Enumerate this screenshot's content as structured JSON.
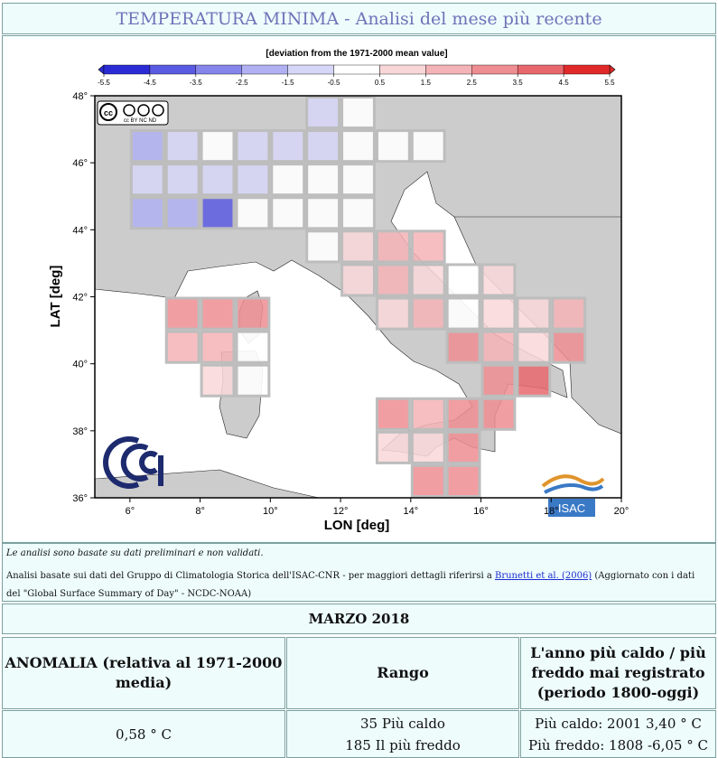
{
  "header": {
    "title": "TEMPERATURA MINIMA - Analisi del mese più recente"
  },
  "map": {
    "colorbar_title": "[deviation from the 1971-2000 mean value]",
    "colorbar_ticks": [
      "-5.5",
      "-4.5",
      "-3.5",
      "-2.5",
      "-1.5",
      "-0.5",
      "0.5",
      "1.5",
      "2.5",
      "3.5",
      "4.5",
      "5.5"
    ],
    "colorbar_colors": [
      "#2b2bd6",
      "#5a5ae2",
      "#8585ea",
      "#b0b0f2",
      "#d6d6f8",
      "#ffffff",
      "#f9d7d9",
      "#f4b3b6",
      "#ee8d92",
      "#e8676d",
      "#e02a2a"
    ],
    "lat_ticks": [
      "48°",
      "46°",
      "44°",
      "42°",
      "40°",
      "38°",
      "36°"
    ],
    "lon_ticks": [
      "6°",
      "8°",
      "10°",
      "12°",
      "14°",
      "16°",
      "18°",
      "20°"
    ],
    "ylabel": "LAT [deg]",
    "xlabel": "LON [deg]",
    "license": "cc BY NC ND",
    "isac_logo": "ISAC"
  },
  "notes": {
    "line1": "Le analisi sono basate su dati preliminari e non validati.",
    "line2_prefix": "Analisi basate sui dati del Gruppo di Climatologia Storica dell'ISAC-CNR - per maggiori dettagli riferirsi a ",
    "link": "Brunetti et al. (2006)",
    "line2_suffix": " (Aggiornato con i dati del \"Global Surface Summary of Day\" - NCDC-NOAA)"
  },
  "month": "MARZO 2018",
  "table": {
    "headers": [
      "ANOMALIA (relativa al 1971-2000 media)",
      "Rango",
      "L'anno più caldo / più freddo mai registrato (periodo 1800-oggi)"
    ],
    "anomaly": "0,58 ° C",
    "rank_warm": "35 Più caldo",
    "rank_cold": "185 Il più freddo",
    "record_warm": "Più caldo: 2001 3,40 ° C",
    "record_cold": "Più freddo: 1808 -6,05 ° C"
  },
  "chart_data": {
    "type": "heatmap",
    "title": "[deviation from the 1971-2000 mean value]",
    "xlabel": "LON [deg]",
    "ylabel": "LAT [deg]",
    "xlim": [
      5,
      20
    ],
    "ylim": [
      36,
      48
    ],
    "cell_size_deg": 1,
    "cells": [
      {
        "lon": 11,
        "lat": 47,
        "v": -1.0
      },
      {
        "lon": 12,
        "lat": 47,
        "v": 0.0
      },
      {
        "lon": 6,
        "lat": 46,
        "v": -2.5
      },
      {
        "lon": 7,
        "lat": 46,
        "v": -1.5
      },
      {
        "lon": 8,
        "lat": 46,
        "v": 0.0
      },
      {
        "lon": 9,
        "lat": 46,
        "v": -1.5
      },
      {
        "lon": 10,
        "lat": 46,
        "v": -1.5
      },
      {
        "lon": 11,
        "lat": 46,
        "v": -1.0
      },
      {
        "lon": 12,
        "lat": 46,
        "v": 0.0
      },
      {
        "lon": 13,
        "lat": 46,
        "v": 0.0
      },
      {
        "lon": 14,
        "lat": 46,
        "v": 0.0
      },
      {
        "lon": 6,
        "lat": 45,
        "v": -1.0
      },
      {
        "lon": 7,
        "lat": 45,
        "v": -1.5
      },
      {
        "lon": 8,
        "lat": 45,
        "v": -1.5
      },
      {
        "lon": 9,
        "lat": 45,
        "v": -1.5
      },
      {
        "lon": 10,
        "lat": 45,
        "v": 0.0
      },
      {
        "lon": 11,
        "lat": 45,
        "v": 0.0
      },
      {
        "lon": 12,
        "lat": 45,
        "v": 0.0
      },
      {
        "lon": 6,
        "lat": 44,
        "v": -2.5
      },
      {
        "lon": 7,
        "lat": 44,
        "v": -2.5
      },
      {
        "lon": 8,
        "lat": 44,
        "v": -4.0
      },
      {
        "lon": 9,
        "lat": 44,
        "v": 0.0
      },
      {
        "lon": 10,
        "lat": 44,
        "v": 0.0
      },
      {
        "lon": 11,
        "lat": 44,
        "v": 0.0
      },
      {
        "lon": 12,
        "lat": 44,
        "v": 0.0
      },
      {
        "lon": 11,
        "lat": 43,
        "v": 0.0
      },
      {
        "lon": 12,
        "lat": 43,
        "v": 1.0
      },
      {
        "lon": 13,
        "lat": 43,
        "v": 1.5
      },
      {
        "lon": 14,
        "lat": 43,
        "v": 1.5
      },
      {
        "lon": 12,
        "lat": 42,
        "v": 1.0
      },
      {
        "lon": 13,
        "lat": 42,
        "v": 1.5
      },
      {
        "lon": 14,
        "lat": 42,
        "v": 1.0
      },
      {
        "lon": 15,
        "lat": 42,
        "v": 0.0
      },
      {
        "lon": 16,
        "lat": 42,
        "v": 1.0
      },
      {
        "lon": 7,
        "lat": 41,
        "v": 2.5
      },
      {
        "lon": 8,
        "lat": 41,
        "v": 2.5
      },
      {
        "lon": 9,
        "lat": 41,
        "v": 2.5
      },
      {
        "lon": 13,
        "lat": 41,
        "v": 1.0
      },
      {
        "lon": 14,
        "lat": 41,
        "v": 1.5
      },
      {
        "lon": 15,
        "lat": 41,
        "v": 0.0
      },
      {
        "lon": 16,
        "lat": 41,
        "v": 1.0
      },
      {
        "lon": 17,
        "lat": 41,
        "v": 0.5
      },
      {
        "lon": 18,
        "lat": 41,
        "v": 1.5
      },
      {
        "lon": 7,
        "lat": 40,
        "v": 1.5
      },
      {
        "lon": 8,
        "lat": 40,
        "v": 1.5
      },
      {
        "lon": 9,
        "lat": 40,
        "v": 0.0
      },
      {
        "lon": 15,
        "lat": 40,
        "v": 2.5
      },
      {
        "lon": 16,
        "lat": 40,
        "v": 1.5
      },
      {
        "lon": 17,
        "lat": 40,
        "v": 1.0
      },
      {
        "lon": 18,
        "lat": 40,
        "v": 2.5
      },
      {
        "lon": 8,
        "lat": 39,
        "v": 1.0
      },
      {
        "lon": 9,
        "lat": 39,
        "v": 0.0
      },
      {
        "lon": 16,
        "lat": 39,
        "v": 2.5
      },
      {
        "lon": 17,
        "lat": 39,
        "v": 4.0
      },
      {
        "lon": 13,
        "lat": 38,
        "v": 2.5
      },
      {
        "lon": 14,
        "lat": 38,
        "v": 1.5
      },
      {
        "lon": 15,
        "lat": 38,
        "v": 2.5
      },
      {
        "lon": 16,
        "lat": 38,
        "v": 2.5
      },
      {
        "lon": 13,
        "lat": 37,
        "v": 1.0
      },
      {
        "lon": 14,
        "lat": 37,
        "v": 1.0
      },
      {
        "lon": 15,
        "lat": 37,
        "v": 2.5
      },
      {
        "lon": 14,
        "lat": 36,
        "v": 2.5
      },
      {
        "lon": 15,
        "lat": 36,
        "v": 2.5
      }
    ]
  }
}
